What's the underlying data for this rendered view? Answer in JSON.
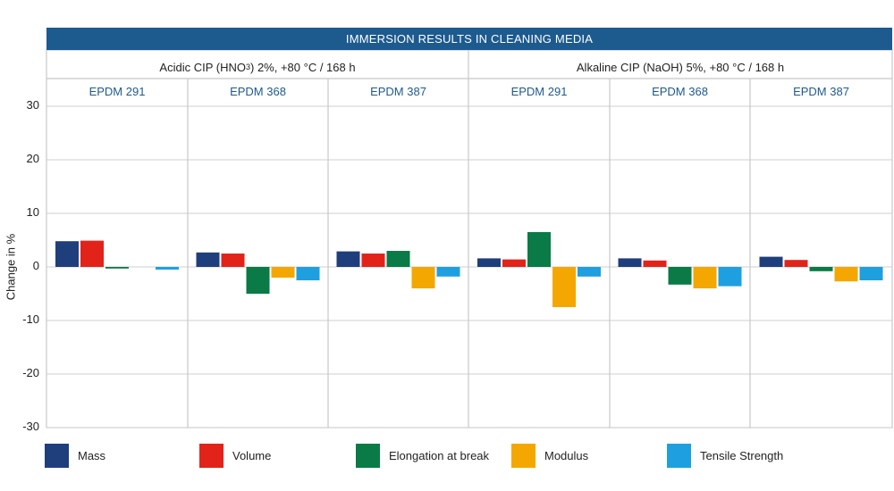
{
  "chart_data": {
    "type": "bar",
    "title": "IMMERSION RESULTS IN CLEANING MEDIA",
    "ylabel": "Change in %",
    "ylim": [
      -30,
      30
    ],
    "yticks": [
      30,
      20,
      10,
      0,
      -10,
      -20,
      -30
    ],
    "grid": true,
    "legend_position": "bottom",
    "conditions": [
      {
        "label_pre": "Acidic CIP (HNO",
        "label_sub": "3",
        "label_post": ") 2%, +80 °C / 168 h"
      },
      {
        "label_pre": "Alkaline CIP (NaOH) 5%, +80 °C / 168 h",
        "label_sub": "",
        "label_post": ""
      }
    ],
    "categories": [
      "EPDM 291",
      "EPDM 368",
      "EPDM 387",
      "EPDM 291",
      "EPDM 368",
      "EPDM 387"
    ],
    "series": [
      {
        "name": "Mass",
        "color": "#1f3e7c",
        "values": [
          4.8,
          2.7,
          2.9,
          1.6,
          1.6,
          1.9
        ]
      },
      {
        "name": "Volume",
        "color": "#e2231a",
        "values": [
          4.9,
          2.5,
          2.5,
          1.4,
          1.2,
          1.3
        ]
      },
      {
        "name": "Elongation at break",
        "color": "#0a7a46",
        "values": [
          -0.3,
          -5.0,
          3.0,
          6.5,
          -3.3,
          -0.8
        ]
      },
      {
        "name": "Modulus",
        "color": "#f4a700",
        "values": [
          0.0,
          -2.0,
          -4.0,
          -7.5,
          -4.0,
          -2.7
        ]
      },
      {
        "name": "Tensile Strength",
        "color": "#1ea0e0",
        "values": [
          -0.5,
          -2.5,
          -1.8,
          -1.8,
          -3.6,
          -2.5
        ]
      }
    ]
  }
}
